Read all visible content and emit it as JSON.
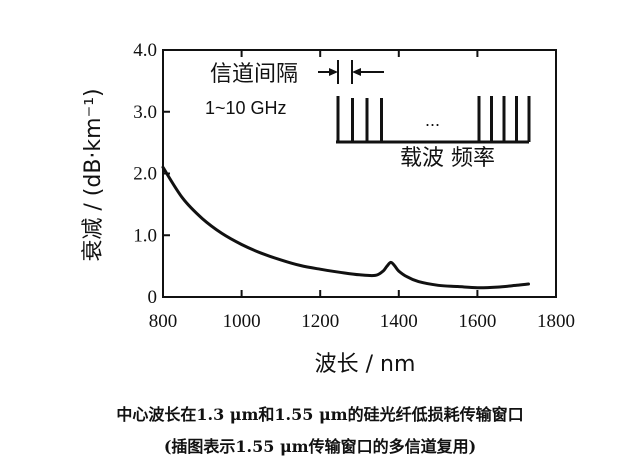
{
  "chart_data": {
    "type": "line",
    "title": "",
    "xlabel": "波长 / nm",
    "ylabel": "衰减 / (dB·km⁻¹)",
    "xlim": [
      800,
      1800
    ],
    "ylim": [
      0,
      4.0
    ],
    "xticks": [
      800,
      1000,
      1200,
      1400,
      1600,
      1800
    ],
    "yticks": [
      0,
      1.0,
      2.0,
      3.0,
      4.0
    ],
    "ytick_labels": [
      "0",
      "1.0",
      "2.0",
      "3.0",
      "4.0"
    ],
    "grid": false,
    "series": [
      {
        "x": [
          800,
          850,
          900,
          950,
          1000,
          1050,
          1100,
          1150,
          1200,
          1250,
          1300,
          1340,
          1360,
          1370,
          1380,
          1390,
          1400,
          1420,
          1450,
          1500,
          1550,
          1600,
          1650,
          1700,
          1730
        ],
        "y": [
          2.1,
          1.6,
          1.27,
          1.03,
          0.85,
          0.71,
          0.6,
          0.51,
          0.45,
          0.4,
          0.36,
          0.35,
          0.42,
          0.5,
          0.56,
          0.5,
          0.42,
          0.33,
          0.25,
          0.19,
          0.17,
          0.15,
          0.16,
          0.19,
          0.21
        ]
      }
    ],
    "inset": {
      "spacing_label": "信道间隔",
      "range_label": "1~10 GHz",
      "axis_label": "载波 频率",
      "ellipsis": "...",
      "left_group_lines": 4,
      "right_group_lines": 5
    }
  },
  "caption": {
    "line1": "中心波长在1.3 μm和1.55 μm的硅光纤低损耗传输窗口",
    "line2": "(插图表示1.55 μm传输窗口的多信道复用)"
  }
}
